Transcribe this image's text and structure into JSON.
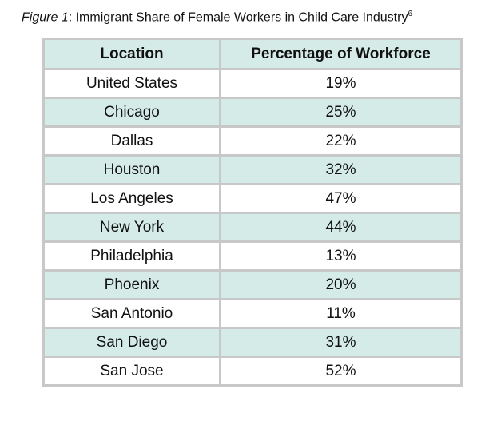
{
  "caption": {
    "label": "Figure 1",
    "text": ": Immigrant Share of Female Workers in Child Care Industry",
    "footnote": "6"
  },
  "table": {
    "headers": [
      "Location",
      "Percentage of Workforce"
    ],
    "rows": [
      [
        "United States",
        "19%"
      ],
      [
        "Chicago",
        "25%"
      ],
      [
        "Dallas",
        "22%"
      ],
      [
        "Houston",
        "32%"
      ],
      [
        "Los Angeles",
        "47%"
      ],
      [
        "New York",
        "44%"
      ],
      [
        "Philadelphia",
        "13%"
      ],
      [
        "Phoenix",
        "20%"
      ],
      [
        "San Antonio",
        "11%"
      ],
      [
        "San Diego",
        "31%"
      ],
      [
        "San Jose",
        "52%"
      ]
    ]
  },
  "colors": {
    "header_fill": "#d5ebe7",
    "border": "#c8c8c8"
  }
}
